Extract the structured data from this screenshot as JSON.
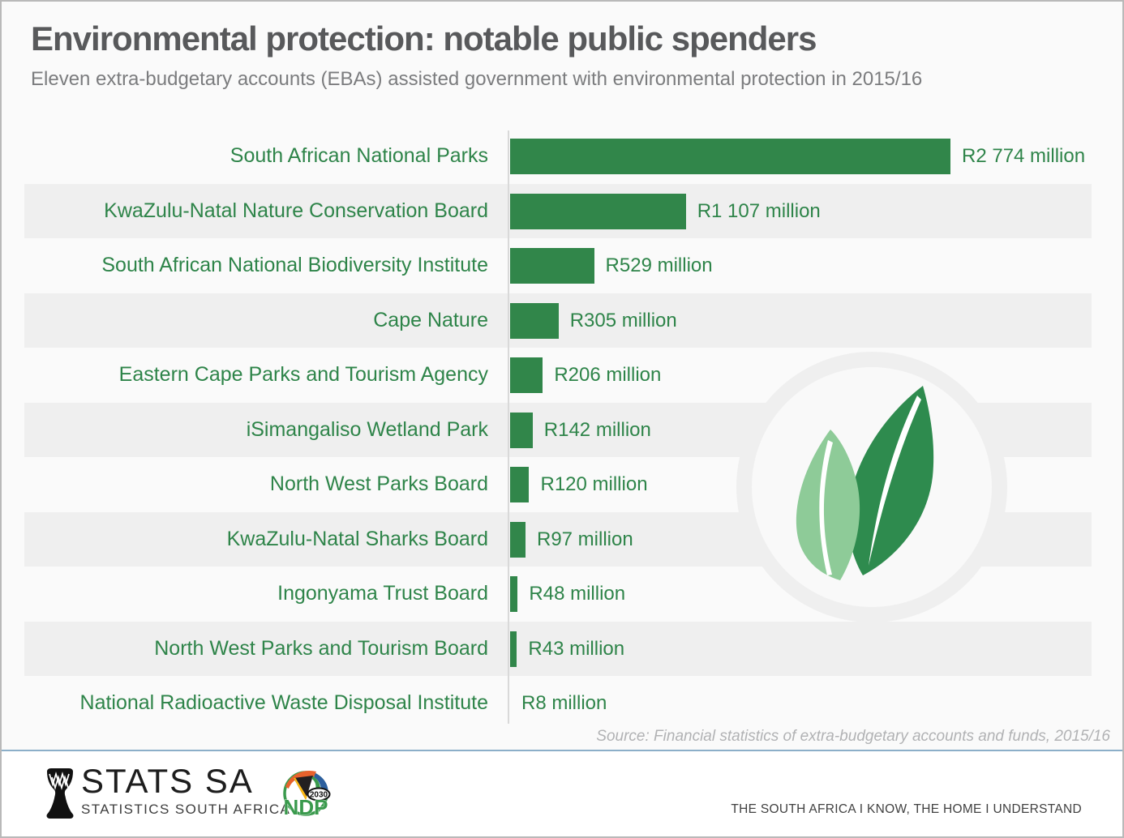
{
  "header": {
    "title": "Environmental protection: notable public spenders",
    "subtitle": "Eleven extra-budgetary accounts (EBAs) assisted government with environmental protection in 2015/16"
  },
  "chart_data": {
    "type": "bar",
    "orientation": "horizontal",
    "title": "Environmental protection: notable public spenders",
    "xlabel": "",
    "ylabel": "",
    "xlim": [
      0,
      2900
    ],
    "grid": false,
    "legend": "none",
    "unit": "R million",
    "categories": [
      "South African National Parks",
      "KwaZulu-Natal Nature Conservation Board",
      "South African National Biodiversity Institute",
      "Cape Nature",
      "Eastern Cape Parks and Tourism Agency",
      "iSimangaliso Wetland Park",
      "North West Parks Board",
      "KwaZulu-Natal Sharks Board",
      "Ingonyama Trust Board",
      "North West Parks and Tourism Board",
      "National Radioactive Waste Disposal Institute"
    ],
    "values": [
      2774,
      1107,
      529,
      305,
      206,
      142,
      120,
      97,
      48,
      43,
      8
    ],
    "value_labels": [
      "R2 774 million",
      "R1 107 million",
      "R529 million",
      "R305 million",
      "R206 million",
      "R142 million",
      "R120 million",
      "R97 million",
      "R48 million",
      "R43 million",
      "R8 million"
    ]
  },
  "colors": {
    "bar_green": "#31864a",
    "label_green": "#2e8449",
    "stripe_gray": "#efefef",
    "dark_leaf": "#2e8b4e",
    "light_leaf": "#8ecb98",
    "title_gray": "#58595b",
    "divider_blue": "#8cafc9"
  },
  "source": "Source: Financial statistics of extra-budgetary accounts and funds, 2015/16",
  "footer": {
    "statssa_name": "STATS SA",
    "statssa_sub": "STATISTICS SOUTH AFRICA",
    "ndp_label": "NDP",
    "ndp_year": "2030",
    "tagline": "THE SOUTH AFRICA I KNOW, THE HOME I UNDERSTAND"
  },
  "icons": {
    "drum": "statssa-drum-logo",
    "ndp": "ndp-2030-logo",
    "leaves": "leaves-watermark"
  }
}
